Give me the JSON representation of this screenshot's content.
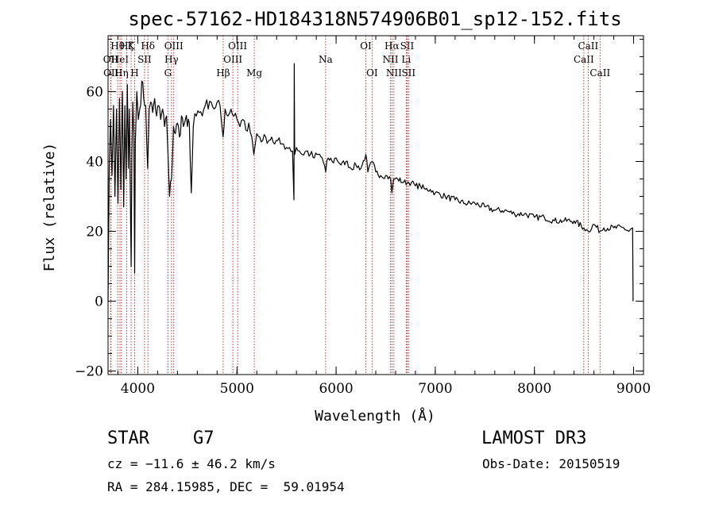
{
  "header": {
    "title": "spec-57162-HD184318N574906B01_sp12-152.fits"
  },
  "info": {
    "object_class": "STAR",
    "subclass": "G7",
    "survey": "LAMOST DR3",
    "cz": "cz = −11.6 ± 46.2 km/s",
    "obs_date": "Obs-Date: 20150519",
    "coords": "RA = 284.15985, DEC =  59.01954"
  },
  "chart_data": {
    "type": "line",
    "title": "spec-57162-HD184318N574906B01_sp12-152.fits",
    "xlabel": "Wavelength (Å)",
    "ylabel": "Flux (relative)",
    "xlim": [
      3700,
      9100
    ],
    "ylim": [
      -21,
      76
    ],
    "x_ticks": [
      4000,
      5000,
      6000,
      7000,
      8000,
      9000
    ],
    "y_ticks": [
      -20,
      0,
      20,
      40,
      60
    ],
    "x_minor_step": 200,
    "y_minor_step": 5,
    "series": [
      {
        "name": "flux",
        "points": [
          [
            3700,
            0
          ],
          [
            3712,
            38
          ],
          [
            3725,
            52
          ],
          [
            3740,
            36
          ],
          [
            3755,
            56
          ],
          [
            3770,
            30
          ],
          [
            3785,
            55
          ],
          [
            3800,
            28
          ],
          [
            3815,
            58
          ],
          [
            3830,
            32
          ],
          [
            3845,
            60
          ],
          [
            3858,
            27
          ],
          [
            3870,
            56
          ],
          [
            3882,
            35
          ],
          [
            3895,
            62
          ],
          [
            3905,
            38
          ],
          [
            3915,
            55
          ],
          [
            3925,
            30
          ],
          [
            3933,
            10
          ],
          [
            3940,
            42
          ],
          [
            3950,
            57
          ],
          [
            3960,
            48
          ],
          [
            3968,
            8
          ],
          [
            3975,
            45
          ],
          [
            3990,
            60
          ],
          [
            4005,
            52
          ],
          [
            4020,
            55
          ],
          [
            4040,
            63
          ],
          [
            4060,
            58
          ],
          [
            4080,
            56
          ],
          [
            4100,
            38
          ],
          [
            4115,
            55
          ],
          [
            4130,
            57
          ],
          [
            4150,
            54
          ],
          [
            4170,
            58
          ],
          [
            4190,
            53
          ],
          [
            4210,
            56
          ],
          [
            4230,
            52
          ],
          [
            4250,
            55
          ],
          [
            4270,
            50
          ],
          [
            4290,
            53
          ],
          [
            4305,
            42
          ],
          [
            4320,
            30
          ],
          [
            4340,
            35
          ],
          [
            4360,
            50
          ],
          [
            4380,
            48
          ],
          [
            4400,
            51
          ],
          [
            4420,
            47
          ],
          [
            4440,
            53
          ],
          [
            4460,
            50
          ],
          [
            4480,
            52
          ],
          [
            4500,
            50
          ],
          [
            4520,
            51
          ],
          [
            4540,
            31
          ],
          [
            4560,
            50
          ],
          [
            4590,
            53
          ],
          [
            4620,
            54
          ],
          [
            4650,
            53
          ],
          [
            4680,
            56
          ],
          [
            4710,
            55
          ],
          [
            4740,
            57
          ],
          [
            4770,
            55
          ],
          [
            4800,
            57
          ],
          [
            4830,
            56
          ],
          [
            4860,
            47
          ],
          [
            4880,
            55
          ],
          [
            4910,
            53
          ],
          [
            4940,
            55
          ],
          [
            4970,
            53
          ],
          [
            5000,
            52
          ],
          [
            5030,
            50
          ],
          [
            5060,
            52
          ],
          [
            5090,
            49
          ],
          [
            5120,
            51
          ],
          [
            5150,
            47
          ],
          [
            5170,
            42
          ],
          [
            5200,
            48
          ],
          [
            5230,
            47
          ],
          [
            5260,
            46
          ],
          [
            5290,
            47
          ],
          [
            5320,
            46
          ],
          [
            5350,
            47
          ],
          [
            5380,
            45
          ],
          [
            5410,
            46
          ],
          [
            5440,
            45
          ],
          [
            5470,
            45
          ],
          [
            5500,
            44
          ],
          [
            5530,
            44
          ],
          [
            5560,
            43
          ],
          [
            5575,
            29
          ],
          [
            5578,
            68
          ],
          [
            5582,
            42
          ],
          [
            5600,
            44
          ],
          [
            5630,
            43
          ],
          [
            5660,
            42
          ],
          [
            5700,
            43
          ],
          [
            5740,
            42
          ],
          [
            5780,
            41
          ],
          [
            5820,
            42
          ],
          [
            5860,
            41
          ],
          [
            5895,
            37
          ],
          [
            5920,
            41
          ],
          [
            5960,
            40
          ],
          [
            6000,
            41
          ],
          [
            6050,
            39
          ],
          [
            6100,
            40
          ],
          [
            6150,
            38
          ],
          [
            6200,
            39
          ],
          [
            6250,
            38
          ],
          [
            6300,
            42
          ],
          [
            6320,
            37
          ],
          [
            6364,
            40
          ],
          [
            6400,
            37
          ],
          [
            6450,
            36
          ],
          [
            6500,
            36
          ],
          [
            6550,
            35
          ],
          [
            6563,
            31
          ],
          [
            6580,
            35
          ],
          [
            6620,
            35
          ],
          [
            6680,
            34
          ],
          [
            6720,
            34
          ],
          [
            6760,
            34
          ],
          [
            6800,
            33
          ],
          [
            6850,
            33
          ],
          [
            6900,
            32
          ],
          [
            6950,
            32
          ],
          [
            7000,
            31
          ],
          [
            7100,
            30
          ],
          [
            7200,
            29
          ],
          [
            7300,
            28
          ],
          [
            7400,
            28
          ],
          [
            7500,
            27
          ],
          [
            7600,
            26
          ],
          [
            7700,
            26
          ],
          [
            7800,
            25
          ],
          [
            7900,
            25
          ],
          [
            8000,
            24
          ],
          [
            8100,
            24
          ],
          [
            8200,
            23
          ],
          [
            8300,
            23
          ],
          [
            8400,
            23
          ],
          [
            8498,
            21
          ],
          [
            8542,
            20
          ],
          [
            8600,
            22
          ],
          [
            8662,
            20
          ],
          [
            8700,
            21
          ],
          [
            8800,
            21
          ],
          [
            8900,
            21
          ],
          [
            8950,
            20
          ],
          [
            8990,
            21
          ],
          [
            8995,
            0
          ]
        ]
      }
    ],
    "line_markers": [
      {
        "wavelength": 3727,
        "label": "OII",
        "row": 1
      },
      {
        "wavelength": 3730,
        "label": "OII",
        "row": 2
      },
      {
        "wavelength": 3797,
        "label": "Hθ",
        "row": 0
      },
      {
        "wavelength": 3820,
        "label": "HeI",
        "row": 1
      },
      {
        "wavelength": 3835,
        "label": "Hη",
        "row": 2
      },
      {
        "wavelength": 3889,
        "label": "Hζ",
        "row": 0
      },
      {
        "wavelength": 3933,
        "label": "K",
        "row": 0
      },
      {
        "wavelength": 3968,
        "label": "H",
        "row": 2
      },
      {
        "wavelength": 4068,
        "label": "SII",
        "row": 1
      },
      {
        "wavelength": 4102,
        "label": "Hδ",
        "row": 0
      },
      {
        "wavelength": 4304,
        "label": "G",
        "row": 2
      },
      {
        "wavelength": 4340,
        "label": "Hγ",
        "row": 1
      },
      {
        "wavelength": 4363,
        "label": "OIII",
        "row": 0
      },
      {
        "wavelength": 4861,
        "label": "Hβ",
        "row": 2
      },
      {
        "wavelength": 4959,
        "label": "OIII",
        "row": 1
      },
      {
        "wavelength": 5007,
        "label": "OIII",
        "row": 0
      },
      {
        "wavelength": 5175,
        "label": "Mg",
        "row": 2
      },
      {
        "wavelength": 5894,
        "label": "Na",
        "row": 1
      },
      {
        "wavelength": 6300,
        "label": "OI",
        "row": 0
      },
      {
        "wavelength": 6363,
        "label": "OI",
        "row": 2
      },
      {
        "wavelength": 6548,
        "label": "NII",
        "row": 1
      },
      {
        "wavelength": 6563,
        "label": "Hα",
        "row": 0
      },
      {
        "wavelength": 6583,
        "label": "NII",
        "row": 2
      },
      {
        "wavelength": 6707,
        "label": "Li",
        "row": 1
      },
      {
        "wavelength": 6716,
        "label": "SII",
        "row": 0
      },
      {
        "wavelength": 6731,
        "label": "SII",
        "row": 2
      },
      {
        "wavelength": 8498,
        "label": "CaII",
        "row": 1
      },
      {
        "wavelength": 8542,
        "label": "CaII",
        "row": 0
      },
      {
        "wavelength": 8662,
        "label": "CaII",
        "row": 2
      }
    ],
    "colors": {
      "axes": "#000000",
      "spectrum": "#000000",
      "markers": "#b22222"
    }
  }
}
